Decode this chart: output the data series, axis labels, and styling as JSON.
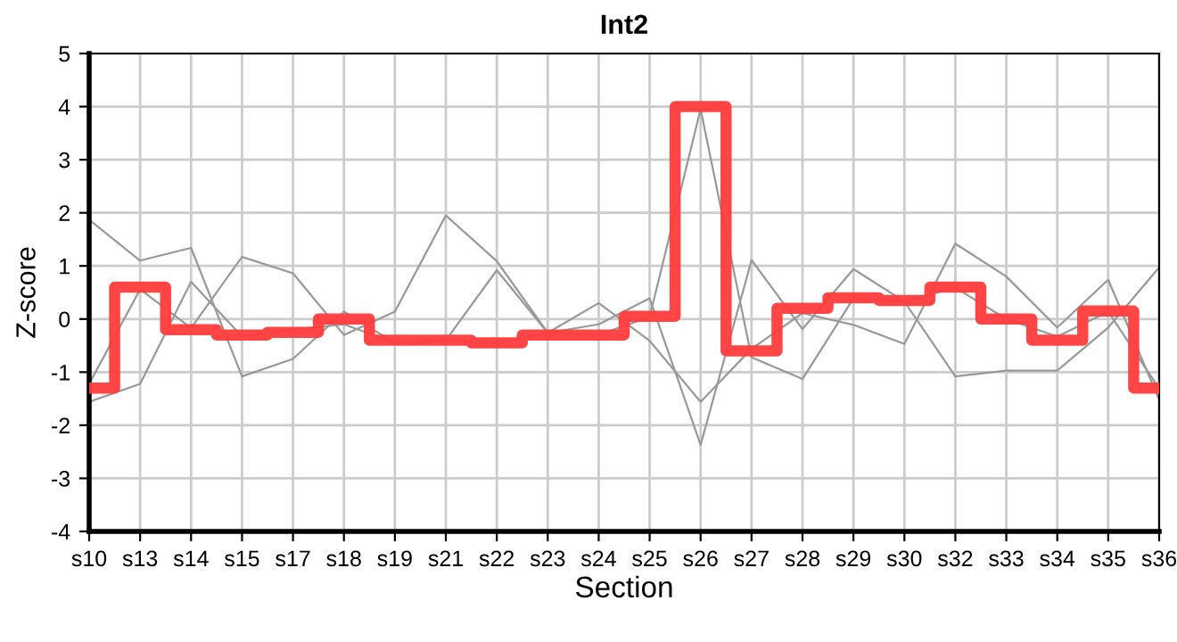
{
  "chart_data": {
    "type": "line",
    "title": "Int2",
    "xlabel": "Section",
    "ylabel": "Z-score",
    "categories": [
      "s10",
      "s13",
      "s14",
      "s15",
      "s17",
      "s18",
      "s19",
      "s21",
      "s22",
      "s23",
      "s24",
      "s25",
      "s26",
      "s27",
      "s28",
      "s29",
      "s30",
      "s32",
      "s33",
      "s34",
      "s35",
      "s36"
    ],
    "series": [
      {
        "color": "#999999",
        "values": [
          1.87,
          1.1,
          1.34,
          -1.08,
          -0.75,
          0.14,
          -0.45,
          -0.4,
          0.92,
          -0.26,
          -0.1,
          0.39,
          -2.37,
          1.11,
          -0.19,
          0.94,
          0.33,
          -1.08,
          -0.97,
          -0.97,
          -0.16,
          0.97
        ]
      },
      {
        "color": "#999999",
        "values": [
          -1.22,
          0.56,
          -0.17,
          1.17,
          0.86,
          -0.3,
          0.14,
          1.95,
          1.09,
          -0.26,
          0.3,
          -0.41,
          -1.56,
          -0.56,
          0.11,
          -0.11,
          -0.47,
          1.42,
          0.8,
          -0.16,
          0.74,
          -1.52
        ]
      },
      {
        "color": "#999999",
        "values": [
          -1.56,
          -1.22,
          0.7,
          -0.33,
          -0.2,
          -0.1,
          -0.45,
          -0.4,
          -0.47,
          -0.26,
          -0.3,
          0.04,
          3.95,
          -0.72,
          -1.13,
          0.39,
          0.33,
          0.59,
          0.0,
          -0.33,
          0.14,
          -1.31
        ]
      },
      {
        "type": "step",
        "color": "#ff3b3b",
        "values": [
          -1.3,
          0.6,
          -0.2,
          -0.3,
          -0.25,
          0.0,
          -0.4,
          -0.4,
          -0.45,
          -0.3,
          -0.3,
          0.05,
          4.0,
          -0.6,
          0.2,
          0.4,
          0.35,
          0.6,
          0.0,
          -0.4,
          0.15,
          -1.3
        ]
      }
    ],
    "ylim": [
      -4,
      5
    ],
    "yticks": [
      -4,
      -3,
      -2,
      -1,
      0,
      1,
      2,
      3,
      4,
      5
    ],
    "grid": true,
    "marker": "none",
    "line_style": "solid"
  }
}
